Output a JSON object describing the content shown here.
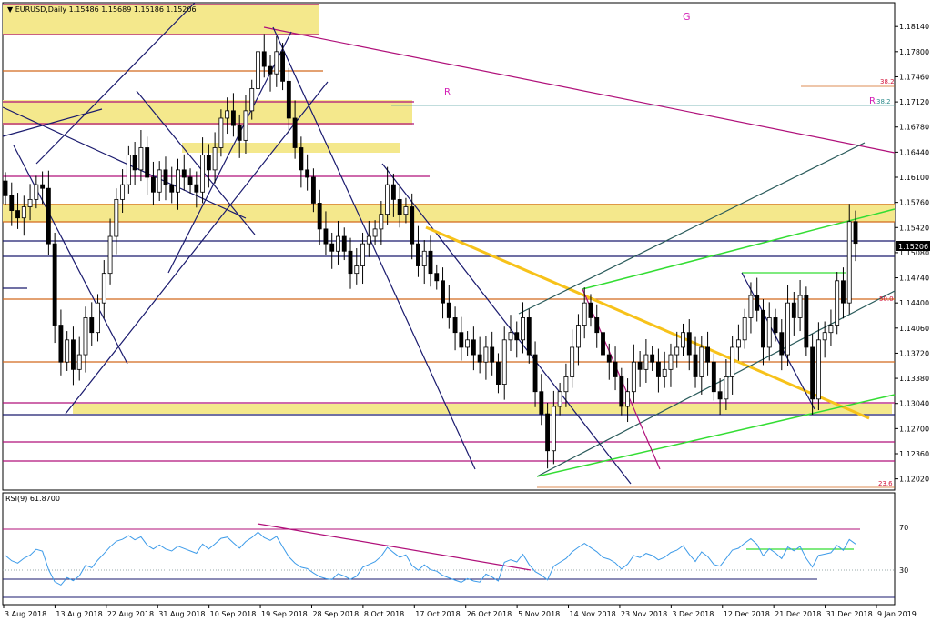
{
  "header": {
    "symbol_label": "EURUSD,Daily",
    "ohlc_text": "1.15486 1.15689 1.15186 1.15206"
  },
  "annotations": {
    "g_label": "G",
    "r_label_left": "R",
    "r_label_right": "R",
    "fib_382_a": "38.2",
    "fib_382_b": "38.2",
    "fib_500": "50.0",
    "fib_236": "23.6"
  },
  "colors": {
    "bull": "#ffffff",
    "bear": "#000000",
    "navy": "#1a1a6e",
    "magenta": "#b0107a",
    "orange_line": "#d2691e",
    "zone_fill": "#f4e88c",
    "yellow_trend": "#f7c21a",
    "green": "#33dd33",
    "teal": "#2a5b5b",
    "rsi_line": "#3d9be9",
    "fib_label": "#d2143a"
  },
  "chart_data": [
    {
      "type": "candlestick",
      "title": "EURUSD,Daily",
      "ylim": [
        1.1188,
        1.1845
      ],
      "ytick_labels": [
        "1.18140",
        "1.17800",
        "1.17460",
        "1.17120",
        "1.16780",
        "1.16440",
        "1.16100",
        "1.15760",
        "1.15420",
        "1.15080",
        "1.14740",
        "1.14400",
        "1.14060",
        "1.13720",
        "1.13380",
        "1.13040",
        "1.12700",
        "1.12360",
        "1.12020"
      ],
      "ytick_values": [
        1.1814,
        1.178,
        1.1746,
        1.1712,
        1.1678,
        1.1644,
        1.161,
        1.1576,
        1.1542,
        1.1508,
        1.1474,
        1.144,
        1.1406,
        1.1372,
        1.1338,
        1.1304,
        1.127,
        1.1236,
        1.1202
      ],
      "current_price_label": "1.15206",
      "current_price": 1.15206,
      "x_labels": [
        "3 Aug 2018",
        "13 Aug 2018",
        "22 Aug 2018",
        "31 Aug 2018",
        "10 Sep 2018",
        "19 Sep 2018",
        "28 Sep 2018",
        "8 Oct 2018",
        "17 Oct 2018",
        "26 Oct 2018",
        "5 Nov 2018",
        "14 Nov 2018",
        "23 Nov 2018",
        "3 Dec 2018",
        "12 Dec 2018",
        "21 Dec 2018",
        "31 Dec 2018",
        "9 Jan 2019"
      ],
      "closes": [
        1.1585,
        1.1565,
        1.1555,
        1.157,
        1.158,
        1.16,
        1.1595,
        1.152,
        1.141,
        1.136,
        1.139,
        1.135,
        1.137,
        1.142,
        1.14,
        1.144,
        1.148,
        1.153,
        1.158,
        1.16,
        1.164,
        1.162,
        1.165,
        1.161,
        1.159,
        1.162,
        1.16,
        1.159,
        1.162,
        1.161,
        1.16,
        1.159,
        1.164,
        1.162,
        1.165,
        1.169,
        1.17,
        1.168,
        1.166,
        1.17,
        1.173,
        1.178,
        1.176,
        1.175,
        1.178,
        1.174,
        1.169,
        1.165,
        1.162,
        1.161,
        1.1575,
        1.154,
        1.152,
        1.151,
        1.153,
        1.151,
        1.148,
        1.149,
        1.152,
        1.153,
        1.154,
        1.156,
        1.16,
        1.158,
        1.156,
        1.157,
        1.152,
        1.149,
        1.151,
        1.148,
        1.147,
        1.144,
        1.142,
        1.14,
        1.138,
        1.139,
        1.137,
        1.136,
        1.138,
        1.136,
        1.133,
        1.139,
        1.14,
        1.139,
        1.142,
        1.137,
        1.132,
        1.129,
        1.124,
        1.13,
        1.132,
        1.134,
        1.138,
        1.141,
        1.144,
        1.142,
        1.14,
        1.137,
        1.136,
        1.134,
        1.13,
        1.132,
        1.136,
        1.135,
        1.137,
        1.136,
        1.134,
        1.135,
        1.137,
        1.138,
        1.14,
        1.137,
        1.134,
        1.138,
        1.136,
        1.132,
        1.131,
        1.134,
        1.138,
        1.139,
        1.142,
        1.145,
        1.143,
        1.138,
        1.142,
        1.14,
        1.137,
        1.144,
        1.142,
        1.145,
        1.138,
        1.131,
        1.139,
        1.14,
        1.141,
        1.147,
        1.144,
        1.155,
        1.15206
      ],
      "overlay_lines": "hand-drawn trendlines, channels, zones and fibonacci levels"
    },
    {
      "type": "line",
      "title": "RSI(9) 61.8700",
      "ylim": [
        0,
        100
      ],
      "ytick_labels": [
        "70",
        "30"
      ],
      "ytick_values": [
        70,
        30
      ],
      "levels": [
        70,
        30
      ]
    }
  ],
  "rsi_header": "RSI(9) 61.8700"
}
